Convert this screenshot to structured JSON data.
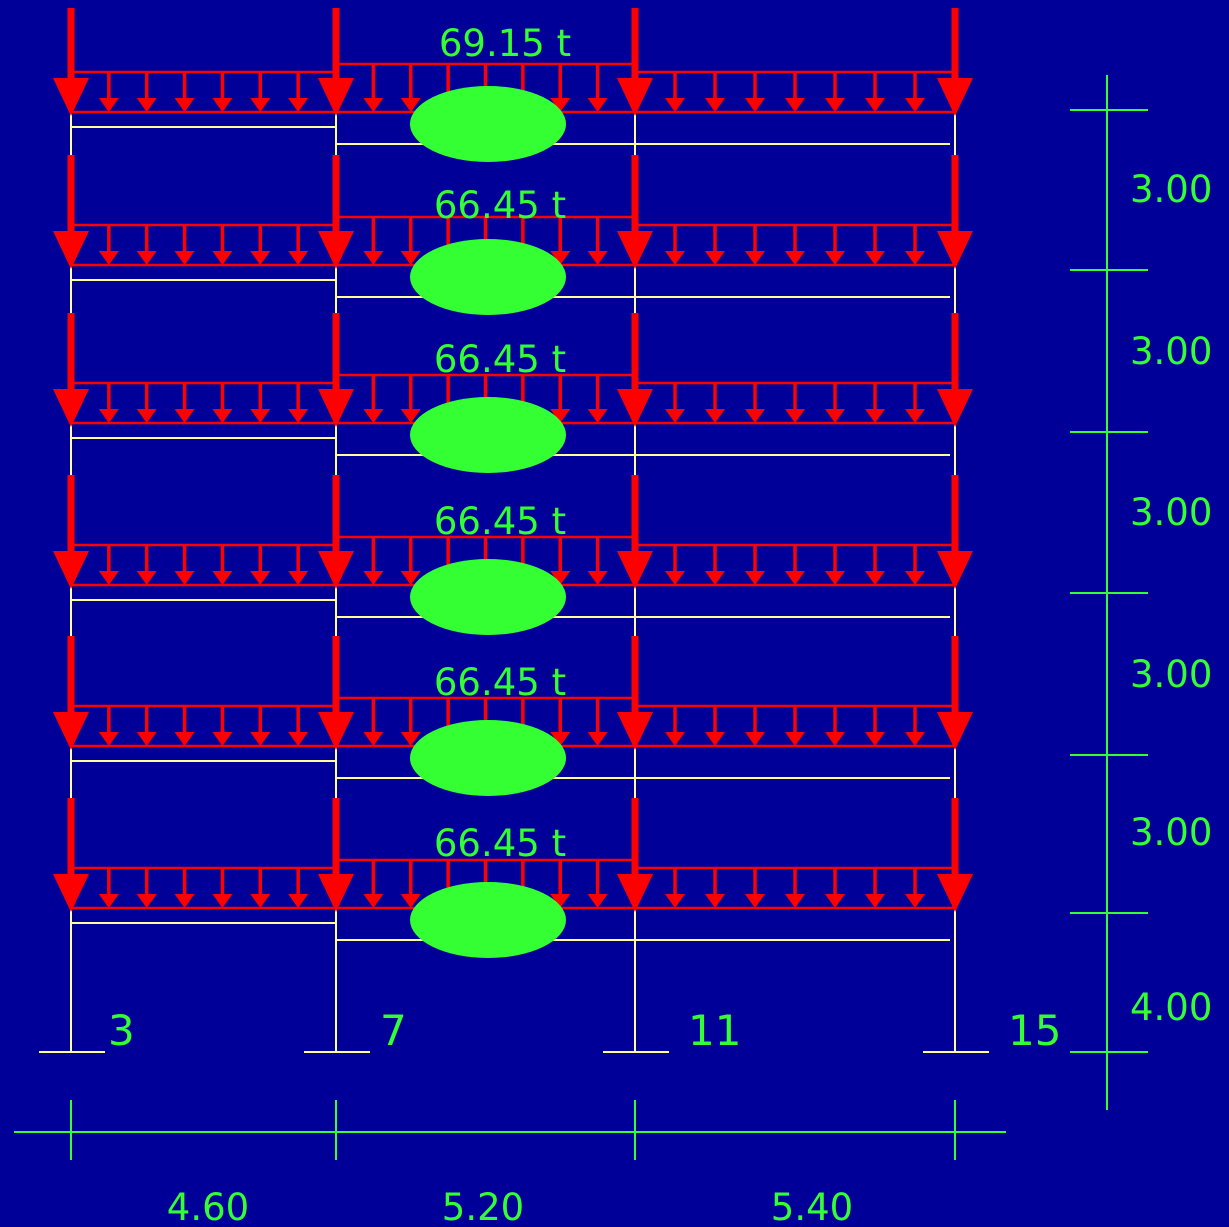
{
  "colors": {
    "background": "#000099",
    "frame": "#ffff99",
    "load": "#ff0000",
    "ellipse": "#33ff33",
    "dimension": "#33ff33",
    "text": "#33ff33"
  },
  "floor_loads": [
    "69.15 t",
    "66.45 t",
    "66.45 t",
    "66.45 t",
    "66.45 t",
    "66.45 t"
  ],
  "node_labels": [
    "3",
    "7",
    "11",
    "15"
  ],
  "story_heights": [
    "3.00",
    "3.00",
    "3.00",
    "3.00",
    "3.00",
    "4.00"
  ],
  "bay_widths": [
    "4.60",
    "5.20",
    "5.40"
  ]
}
